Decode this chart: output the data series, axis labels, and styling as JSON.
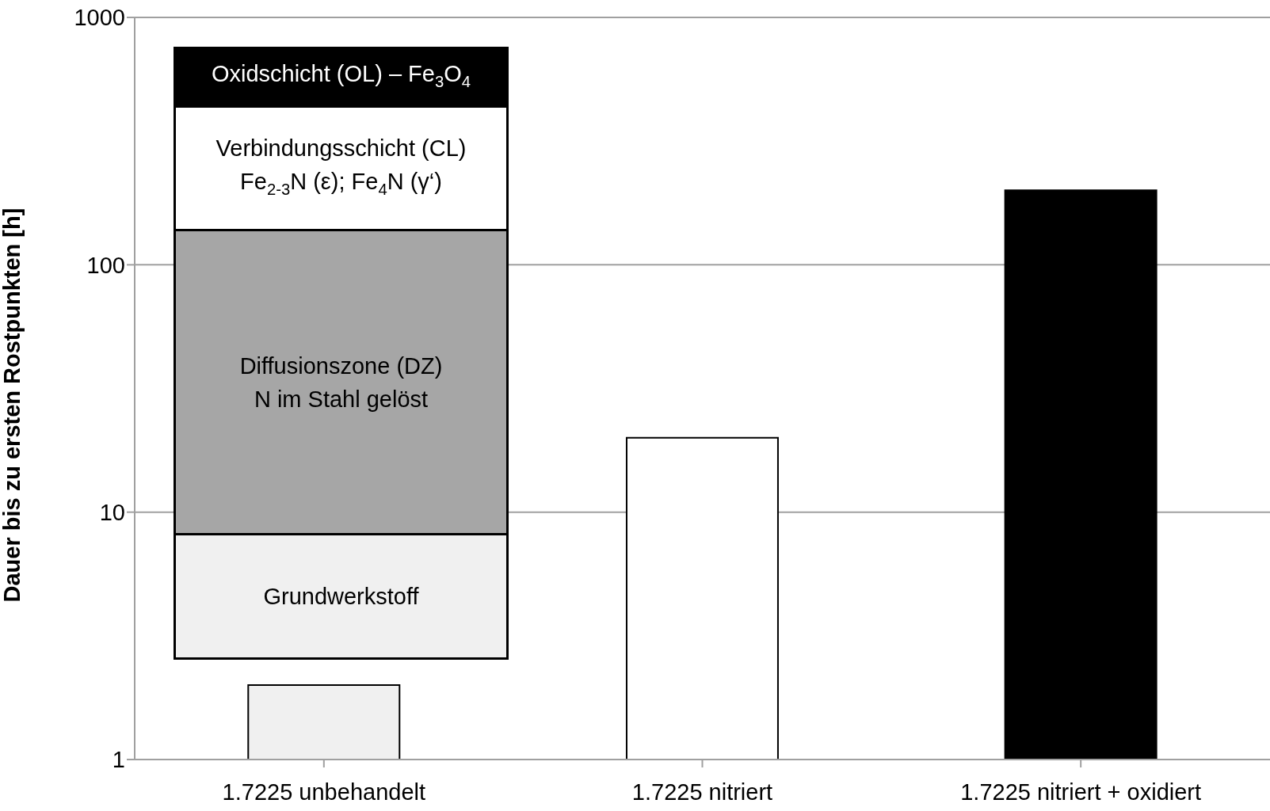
{
  "chart_data": {
    "type": "bar",
    "ylabel": "Dauer bis zu ersten Rostpunkten [h]",
    "categories": [
      "1.7225 unbehandelt",
      "1.7225 nitriert",
      "1.7225 nitriert + oxidiert"
    ],
    "values": [
      2,
      20,
      200
    ],
    "colors": [
      "#f0f0f0",
      "#ffffff",
      "#000000"
    ],
    "log": "y",
    "ylim": [
      1,
      1000
    ],
    "yticks": [
      1,
      10,
      100,
      1000
    ],
    "grid": "y",
    "annotations": [
      "Oxidschicht (OL) – Fe$_{3}$O$_{4}$",
      "Verbindungsschicht (CL)\nFe$_{2-3}$N (ε); Fe$_{4}$N (γ‘)",
      "Diffusionszone (DZ)\nN im Stahl gelöst",
      "Grundwerkstoff"
    ]
  }
}
